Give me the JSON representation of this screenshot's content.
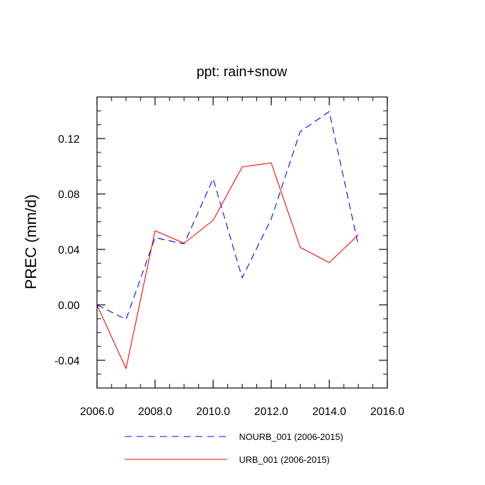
{
  "chart_data": {
    "type": "line",
    "title": "ppt: rain+snow",
    "ylabel": "PREC  (mm/d)",
    "xlabel": "",
    "xlim": [
      2006,
      2016
    ],
    "ylim": [
      -0.06,
      0.15
    ],
    "xticks": [
      2006,
      2008,
      2010,
      2012,
      2014,
      2016
    ],
    "xtick_labels": [
      "2006.0",
      "2008.0",
      "2010.0",
      "2012.0",
      "2014.0",
      "2016.0"
    ],
    "xminor_step": 0.5,
    "yticks": [
      -0.04,
      0.0,
      0.04,
      0.08,
      0.12
    ],
    "ytick_labels": [
      "-0.04",
      "0.00",
      "0.04",
      "0.08",
      "0.12"
    ],
    "yminor_step": 0.01,
    "grid": false,
    "legend_position": "bottom",
    "series": [
      {
        "name": "NOURB_001 (2006-2015)",
        "color": "#0000ff",
        "style": "dashed",
        "x": [
          2006,
          2007,
          2008,
          2009,
          2010,
          2011,
          2012,
          2013,
          2014,
          2015
        ],
        "y": [
          0.0,
          -0.0105,
          0.0485,
          0.044,
          0.091,
          0.0195,
          0.062,
          0.125,
          0.1395,
          0.043
        ]
      },
      {
        "name": "URB_001 (2006-2015)",
        "color": "#ff0000",
        "style": "solid",
        "x": [
          2006,
          2007,
          2008,
          2009,
          2010,
          2011,
          2012,
          2013,
          2014,
          2015
        ],
        "y": [
          0.0,
          -0.046,
          0.0535,
          0.0445,
          0.061,
          0.0995,
          0.1025,
          0.0415,
          0.0305,
          0.0505
        ]
      }
    ]
  }
}
